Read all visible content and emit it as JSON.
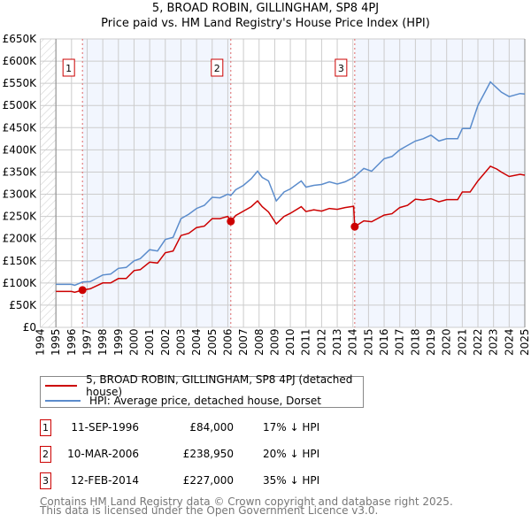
{
  "chart_data": {
    "type": "line",
    "title": "5, BROAD ROBIN, GILLINGHAM, SP8 4PJ",
    "subtitle": "Price paid vs. HM Land Registry's House Price Index (HPI)",
    "xlim": [
      1994,
      2025
    ],
    "ylim": [
      0,
      650000
    ],
    "x_ticks": [
      "1994",
      "1995",
      "1996",
      "1997",
      "1998",
      "1999",
      "2000",
      "2001",
      "2002",
      "2003",
      "2004",
      "2005",
      "2006",
      "2007",
      "2008",
      "2009",
      "2010",
      "2011",
      "2012",
      "2013",
      "2014",
      "2015",
      "2016",
      "2017",
      "2018",
      "2019",
      "2020",
      "2021",
      "2022",
      "2023",
      "2024",
      "2025"
    ],
    "y_ticks": [
      {
        "value": 0,
        "label": "£0"
      },
      {
        "value": 50000,
        "label": "£50K"
      },
      {
        "value": 100000,
        "label": "£100K"
      },
      {
        "value": 150000,
        "label": "£150K"
      },
      {
        "value": 200000,
        "label": "£200K"
      },
      {
        "value": 250000,
        "label": "£250K"
      },
      {
        "value": 300000,
        "label": "£300K"
      },
      {
        "value": 350000,
        "label": "£350K"
      },
      {
        "value": 400000,
        "label": "£400K"
      },
      {
        "value": 450000,
        "label": "£450K"
      },
      {
        "value": 500000,
        "label": "£500K"
      },
      {
        "value": 550000,
        "label": "£550K"
      },
      {
        "value": 600000,
        "label": "£600K"
      },
      {
        "value": 650000,
        "label": "£650K"
      }
    ],
    "grid": true,
    "series": [
      {
        "name": "5, BROAD ROBIN, GILLINGHAM, SP8 4PJ (detached house)",
        "color": "#cc0000",
        "x": [
          1995,
          1996,
          1996.2,
          1996.7,
          1997.2,
          1998,
          1998.5,
          1999,
          1999.5,
          2000,
          2000.4,
          2001,
          2001.5,
          2002,
          2002.5,
          2003,
          2003.5,
          2004,
          2004.5,
          2005,
          2005.5,
          2006,
          2006.19,
          2006.5,
          2007,
          2007.5,
          2007.9,
          2008.2,
          2008.6,
          2009.1,
          2009.6,
          2010,
          2010.7,
          2011,
          2011.5,
          2012,
          2012.5,
          2013,
          2013.5,
          2014.05,
          2014.12,
          2014.7,
          2015.2,
          2016,
          2016.5,
          2017,
          2017.5,
          2018,
          2018.5,
          2019,
          2019.5,
          2020,
          2020.7,
          2021,
          2021.5,
          2022,
          2022.8,
          2023.2,
          2023.5,
          2024,
          2024.7,
          2025
        ],
        "y": [
          81000,
          81000,
          79000,
          84000,
          87000,
          100000,
          100000,
          110000,
          110000,
          128000,
          130000,
          147000,
          145000,
          168000,
          172000,
          207000,
          212000,
          225000,
          228000,
          245000,
          245000,
          250000,
          238950,
          252000,
          262000,
          272000,
          285000,
          272000,
          260000,
          233000,
          250000,
          257000,
          272000,
          261000,
          265000,
          262000,
          268000,
          266000,
          270000,
          273000,
          227000,
          240000,
          238000,
          253000,
          256000,
          270000,
          275000,
          289000,
          287000,
          290000,
          283000,
          288000,
          288000,
          305000,
          305000,
          330000,
          363000,
          357000,
          350000,
          340000,
          345000,
          343000
        ]
      },
      {
        "name": "HPI: Average price, detached house, Dorset",
        "color": "#5b8ccc",
        "x": [
          1995,
          1996,
          1996.2,
          1996.7,
          1997.2,
          1998,
          1998.5,
          1999,
          1999.5,
          2000,
          2000.4,
          2001,
          2001.5,
          2002,
          2002.5,
          2003,
          2003.5,
          2004,
          2004.5,
          2005,
          2005.5,
          2006,
          2006.19,
          2006.5,
          2007,
          2007.5,
          2007.9,
          2008.2,
          2008.6,
          2009.1,
          2009.6,
          2010,
          2010.7,
          2011,
          2011.5,
          2012,
          2012.5,
          2013,
          2013.5,
          2014.05,
          2014.12,
          2014.7,
          2015.2,
          2016,
          2016.5,
          2017,
          2017.5,
          2018,
          2018.5,
          2019,
          2019.5,
          2020,
          2020.7,
          2021,
          2021.5,
          2022,
          2022.8,
          2023.2,
          2023.5,
          2024,
          2024.7,
          2025
        ],
        "y": [
          97000,
          97000,
          95000,
          102000,
          103000,
          118000,
          120000,
          133000,
          135000,
          150000,
          155000,
          175000,
          172000,
          198000,
          203000,
          245000,
          255000,
          268000,
          275000,
          293000,
          292000,
          300000,
          297000,
          310000,
          320000,
          335000,
          352000,
          338000,
          330000,
          285000,
          305000,
          312000,
          330000,
          316000,
          320000,
          322000,
          328000,
          323000,
          328000,
          338000,
          340000,
          358000,
          352000,
          380000,
          385000,
          400000,
          410000,
          420000,
          425000,
          433000,
          420000,
          425000,
          425000,
          448000,
          448000,
          500000,
          553000,
          540000,
          530000,
          520000,
          527000,
          526000
        ]
      }
    ],
    "sales": [
      {
        "label": "1",
        "x": 1996.7,
        "y": 84000
      },
      {
        "label": "2",
        "x": 2006.19,
        "y": 238950
      },
      {
        "label": "3",
        "x": 2014.12,
        "y": 227000
      }
    ],
    "legend_position": "below"
  },
  "legend": {
    "property": "5, BROAD ROBIN, GILLINGHAM, SP8 4PJ (detached house)",
    "hpi": "HPI: Average price, detached house, Dorset"
  },
  "transactions": [
    {
      "num": "1",
      "date": "11-SEP-1996",
      "price": "£84,000",
      "hpi": "17% ↓ HPI"
    },
    {
      "num": "2",
      "date": "10-MAR-2006",
      "price": "£238,950",
      "hpi": "20% ↓ HPI"
    },
    {
      "num": "3",
      "date": "12-FEB-2014",
      "price": "£227,000",
      "hpi": "35% ↓ HPI"
    }
  ],
  "footer": {
    "line1": "Contains HM Land Registry data © Crown copyright and database right 2025.",
    "line2": "This data is licensed under the Open Government Licence v3.0."
  }
}
